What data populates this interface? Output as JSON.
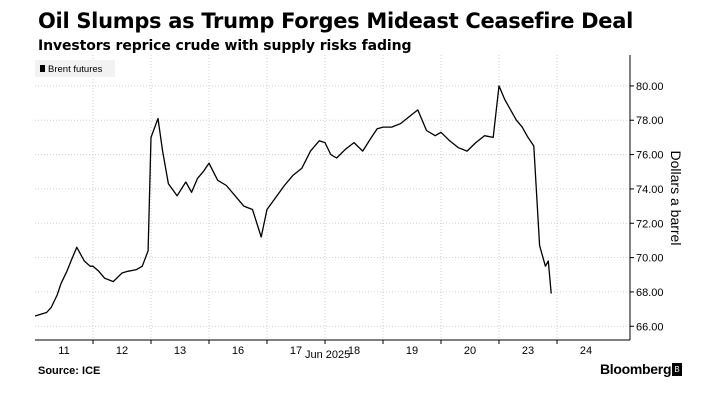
{
  "header": {
    "title": "Oil Slumps as Trump Forges Mideast Ceasefire Deal",
    "subtitle": "Investors reprice crude with supply risks fading"
  },
  "footer": {
    "source": "Source: ICE",
    "brand": "Bloomberg"
  },
  "colors": {
    "line": "#000000",
    "grid": "#d9d9d9",
    "background": "#ffffff"
  },
  "chart_data": {
    "type": "line",
    "xlabel": "Jun 2025",
    "ylabel": "Dollars a barrel",
    "ylim": [
      65.2,
      81.8
    ],
    "yticks": [
      66,
      68,
      70,
      72,
      74,
      76,
      78,
      80
    ],
    "ytick_labels": [
      "66.00",
      "68.00",
      "70.00",
      "72.00",
      "74.00",
      "76.00",
      "78.00",
      "80.00"
    ],
    "x_categories": [
      "11",
      "12",
      "13",
      "16",
      "17",
      "18",
      "19",
      "20",
      "23",
      "24"
    ],
    "legend": {
      "position": "top-left",
      "entries": [
        "Brent futures"
      ]
    },
    "grid": true,
    "series": [
      {
        "name": "Brent futures",
        "x": [
          0,
          0.1,
          0.2,
          0.28,
          0.38,
          0.45,
          0.55,
          0.62,
          0.72,
          0.85,
          0.95,
          1,
          1.1,
          1.2,
          1.35,
          1.5,
          1.6,
          1.75,
          1.85,
          1.95,
          2,
          2.12,
          2.2,
          2.3,
          2.45,
          2.6,
          2.7,
          2.8,
          2.9,
          3,
          3.15,
          3.3,
          3.45,
          3.6,
          3.75,
          3.9,
          4,
          4.15,
          4.3,
          4.45,
          4.6,
          4.75,
          4.9,
          5,
          5.1,
          5.2,
          5.35,
          5.5,
          5.65,
          5.8,
          5.9,
          6,
          6.15,
          6.3,
          6.45,
          6.6,
          6.75,
          6.9,
          7,
          7.15,
          7.3,
          7.45,
          7.6,
          7.75,
          7.9,
          8,
          8.1,
          8.2,
          8.3,
          8.4,
          8.45,
          8.5,
          8.6,
          8.7,
          8.8,
          8.85,
          8.9
        ],
        "y": [
          66.6,
          66.7,
          66.8,
          67.1,
          67.8,
          68.5,
          69.2,
          69.8,
          70.6,
          69.8,
          69.5,
          69.5,
          69.2,
          68.8,
          68.6,
          69.1,
          69.2,
          69.3,
          69.5,
          70.4,
          77.0,
          78.1,
          76.2,
          74.3,
          73.6,
          74.4,
          73.8,
          74.6,
          75.0,
          75.5,
          74.5,
          74.2,
          73.6,
          73.0,
          72.8,
          71.2,
          72.8,
          73.5,
          74.2,
          74.8,
          75.2,
          76.2,
          76.8,
          76.7,
          76.0,
          75.8,
          76.3,
          76.7,
          76.2,
          77.0,
          77.5,
          77.6,
          77.6,
          77.8,
          78.2,
          78.6,
          77.4,
          77.1,
          77.3,
          76.8,
          76.4,
          76.2,
          76.7,
          77.1,
          77.0,
          80.0,
          79.2,
          78.6,
          78.0,
          77.6,
          77.3,
          77.0,
          76.5,
          70.7,
          69.5,
          69.8,
          67.9
        ]
      }
    ]
  }
}
